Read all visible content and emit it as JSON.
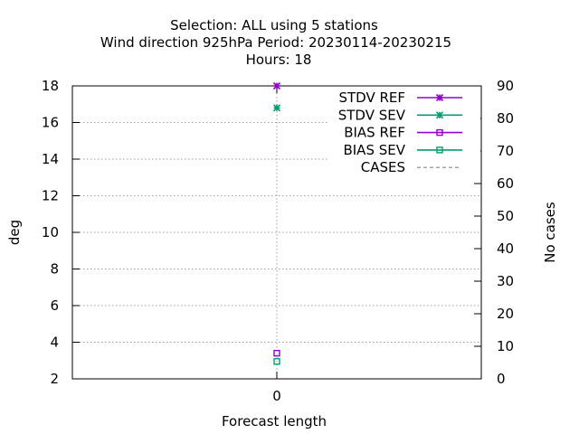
{
  "chart_data": {
    "type": "scatter",
    "title_lines": [
      "Selection: ALL using     5 stations",
      "Wind direction 925hPa   Period: 20230114-20230215",
      "Hours:  18"
    ],
    "xlabel": "Forecast length",
    "ylabel": "deg",
    "y2label": "No cases",
    "x_ticks": [
      0
    ],
    "xlim": [
      -1,
      1
    ],
    "ylim": [
      2,
      18
    ],
    "y_ticks": [
      2,
      4,
      6,
      8,
      10,
      12,
      14,
      16,
      18
    ],
    "y2lim": [
      0,
      90
    ],
    "y2_ticks": [
      0,
      10,
      20,
      30,
      40,
      50,
      60,
      70,
      80,
      90
    ],
    "grid": true,
    "legend_position": "top-right",
    "series": [
      {
        "name": "STDV REF",
        "x": [
          0
        ],
        "values": [
          18.0
        ],
        "color": "#9400d3",
        "marker": "star",
        "axis": "y1"
      },
      {
        "name": "STDV SEV",
        "x": [
          0
        ],
        "values": [
          16.8
        ],
        "color": "#009e73",
        "marker": "star",
        "axis": "y1"
      },
      {
        "name": "BIAS REF",
        "x": [
          0
        ],
        "values": [
          3.4
        ],
        "color": "#9400d3",
        "marker": "square",
        "axis": "y1"
      },
      {
        "name": "BIAS SEV",
        "x": [
          0
        ],
        "values": [
          2.95
        ],
        "color": "#009e73",
        "marker": "square",
        "axis": "y1"
      },
      {
        "name": "CASES",
        "x": [
          0
        ],
        "values": [
          null
        ],
        "color": "#888888",
        "marker": "dashed",
        "axis": "y2"
      }
    ]
  }
}
